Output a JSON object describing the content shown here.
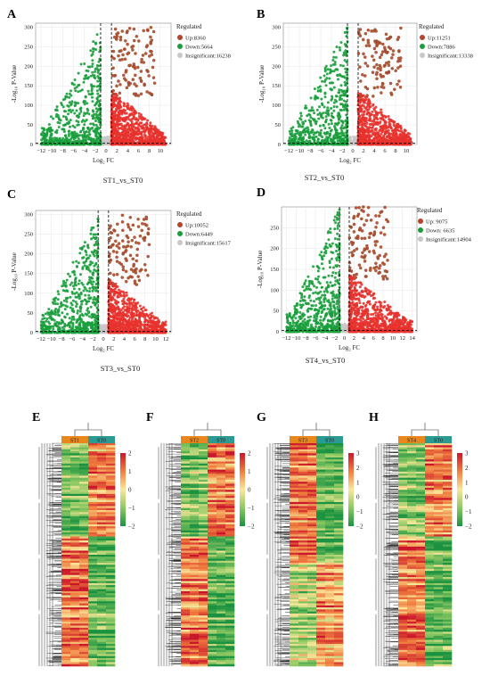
{
  "panels": {
    "A": "A",
    "B": "B",
    "C": "C",
    "D": "D",
    "E": "E",
    "F": "F",
    "G": "G",
    "H": "H"
  },
  "colors": {
    "up": "#e8322e",
    "down": "#1a9e3c",
    "insignificant": "#c8c8c8",
    "up_outline": "#8a5a2e",
    "heat_high": "#c9162b",
    "heat_mid": "#fbe79b",
    "heat_low": "#1a9240",
    "group_a": "#e8871e",
    "group_b": "#2a9a93"
  },
  "chart_data": [
    {
      "type": "scatter",
      "panel": "A",
      "subtitle": "ST1_vs_ST0",
      "xlabel": "Log₂ FC",
      "ylabel": "-Log₁₀ P-Value",
      "xlim": [
        -13,
        12
      ],
      "ylim": [
        0,
        310
      ],
      "xticks": [
        -12,
        -10,
        -8,
        -6,
        -4,
        -2,
        0,
        2,
        4,
        6,
        8,
        10
      ],
      "yticks": [
        0,
        50,
        100,
        150,
        200,
        250,
        300
      ],
      "legend_title": "Regulated",
      "series": [
        {
          "name": "Up:8360",
          "key": "up",
          "count": 8360
        },
        {
          "name": "Down:5664",
          "key": "down",
          "count": 5664
        },
        {
          "name": "Insignificant:16238",
          "key": "insignificant",
          "count": 16238
        }
      ]
    },
    {
      "type": "scatter",
      "panel": "B",
      "subtitle": "ST2_vs_ST0",
      "xlabel": "Log₂ FC",
      "ylabel": "-Log₁₀ P-Value",
      "xlim": [
        -13,
        12
      ],
      "ylim": [
        0,
        310
      ],
      "xticks": [
        -12,
        -10,
        -8,
        -6,
        -4,
        -2,
        0,
        2,
        4,
        6,
        8,
        10
      ],
      "yticks": [
        0,
        50,
        100,
        150,
        200,
        250,
        300
      ],
      "legend_title": "Regulated",
      "series": [
        {
          "name": "Up:11251",
          "key": "up",
          "count": 11251
        },
        {
          "name": "Down:7886",
          "key": "down",
          "count": 7886
        },
        {
          "name": "Insignificant:13338",
          "key": "insignificant",
          "count": 13338
        }
      ]
    },
    {
      "type": "scatter",
      "panel": "C",
      "subtitle": "ST3_vs_ST0",
      "xlabel": "Log₂ FC",
      "ylabel": "-Log₁₀ P-Value",
      "xlim": [
        -13,
        13
      ],
      "ylim": [
        0,
        310
      ],
      "xticks": [
        -12,
        -10,
        -8,
        -6,
        -4,
        -2,
        0,
        2,
        4,
        6,
        8,
        10,
        12
      ],
      "yticks": [
        0,
        50,
        100,
        150,
        200,
        250,
        300
      ],
      "legend_title": "Regulated",
      "series": [
        {
          "name": "Up:10052",
          "key": "up",
          "count": 10052
        },
        {
          "name": "Down:6449",
          "key": "down",
          "count": 6449
        },
        {
          "name": "Insignificant:15617",
          "key": "insignificant",
          "count": 15617
        }
      ]
    },
    {
      "type": "scatter",
      "panel": "D",
      "subtitle": "ST4_vs_ST0",
      "xlabel": "Log₂ FC",
      "ylabel": "-Log₁₀ P-Value",
      "xlim": [
        -13,
        15
      ],
      "ylim": [
        0,
        300
      ],
      "xticks": [
        -12,
        -10,
        -8,
        -6,
        -4,
        -2,
        0,
        2,
        4,
        6,
        8,
        10,
        12,
        14
      ],
      "yticks": [
        0,
        50,
        100,
        150,
        200,
        250
      ],
      "legend_title": "Regulated",
      "series": [
        {
          "name": "Up: 9075",
          "key": "up",
          "count": 9075
        },
        {
          "name": "Down: 6635",
          "key": "down",
          "count": 6635
        },
        {
          "name": "Insignificant:14904",
          "key": "insignificant",
          "count": 14904
        }
      ]
    },
    {
      "type": "heatmap",
      "panel": "E",
      "groups": [
        "ST1",
        "ST0"
      ],
      "colorbar_ticks": [
        2,
        1,
        0,
        -1,
        -2
      ]
    },
    {
      "type": "heatmap",
      "panel": "F",
      "groups": [
        "ST2",
        "ST0"
      ],
      "colorbar_ticks": [
        2,
        1,
        0,
        -1,
        -2
      ]
    },
    {
      "type": "heatmap",
      "panel": "G",
      "groups": [
        "ST3",
        "ST0"
      ],
      "colorbar_ticks": [
        3,
        2,
        1,
        0,
        -1,
        -2
      ]
    },
    {
      "type": "heatmap",
      "panel": "H",
      "groups": [
        "ST4",
        "ST0"
      ],
      "colorbar_ticks": [
        3,
        2,
        1,
        0,
        -1,
        -2
      ]
    }
  ]
}
